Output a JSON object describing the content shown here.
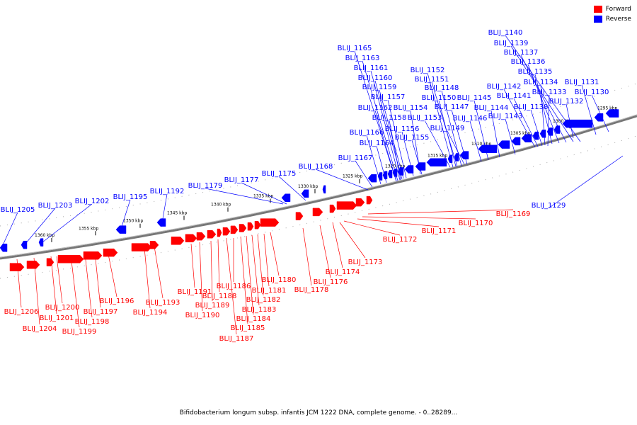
{
  "caption": "Bifidobacterium longum subsp. infantis JCM 1222 DNA, complete genome. - 0..28289...",
  "legend": [
    {
      "label": "Forward",
      "color": "#ff0000"
    },
    {
      "label": "Reverse",
      "color": "#0000ff"
    }
  ],
  "colors": {
    "forward": "#ff0000",
    "reverse": "#0000ff",
    "axis": "#888888"
  },
  "ticks": [
    "1295 kbp",
    "1300 kbp",
    "1305 kbp",
    "1310 kbp",
    "1315 kbp",
    "1320 kbp",
    "1325 kbp",
    "1330 kbp",
    "1335 kbp",
    "1340 kbp",
    "1345 kbp",
    "1350 kbp",
    "1355 kbp",
    "1360 kbp"
  ],
  "forward_genes": [
    "BLIJ_1169",
    "BLIJ_1170",
    "BLIJ_1171",
    "BLIJ_1172",
    "BLIJ_1173",
    "BLIJ_1174",
    "BLIJ_1176",
    "BLIJ_1178",
    "BLIJ_1180",
    "BLIJ_1181",
    "BLIJ_1182",
    "BLIJ_1183",
    "BLIJ_1184",
    "BLIJ_1185",
    "BLIJ_1186",
    "BLIJ_1187",
    "BLIJ_1188",
    "BLIJ_1189",
    "BLIJ_1190",
    "BLIJ_1191",
    "BLIJ_1193",
    "BLIJ_1194",
    "BLIJ_1196",
    "BLIJ_1197",
    "BLIJ_1198",
    "BLIJ_1199",
    "BLIJ_1200",
    "BLIJ_1201",
    "BLIJ_1204",
    "BLIJ_1206"
  ],
  "reverse_genes": [
    "BLIJ_1140",
    "BLIJ_1139",
    "BLIJ_1137",
    "BLIJ_1136",
    "BLIJ_1135",
    "BLIJ_1134",
    "BLIJ_1133",
    "BLIJ_1142",
    "BLIJ_1141",
    "BLIJ_1138",
    "BLIJ_1131",
    "BLIJ_1130",
    "BLIJ_1132",
    "BLIJ_1152",
    "BLIJ_1151",
    "BLIJ_1148",
    "BLIJ_1150",
    "BLIJ_1145",
    "BLIJ_1147",
    "BLIJ_1144",
    "BLIJ_1153",
    "BLIJ_1146",
    "BLIJ_1143",
    "BLIJ_1149",
    "BLIJ_1165",
    "BLIJ_1163",
    "BLIJ_1161",
    "BLIJ_1160",
    "BLIJ_1159",
    "BLIJ_1157",
    "BLIJ_1162",
    "BLIJ_1154",
    "BLIJ_1158",
    "BLIJ_1156",
    "BLIJ_1166",
    "BLIJ_1155",
    "BLIJ_1164",
    "BLIJ_1167",
    "BLIJ_1168",
    "BLIJ_1175",
    "BLIJ_1177",
    "BLIJ_1179",
    "BLIJ_1192",
    "BLIJ_1195",
    "BLIJ_1202",
    "BLIJ_1203",
    "BLIJ_1205",
    "BLIJ_1129"
  ]
}
